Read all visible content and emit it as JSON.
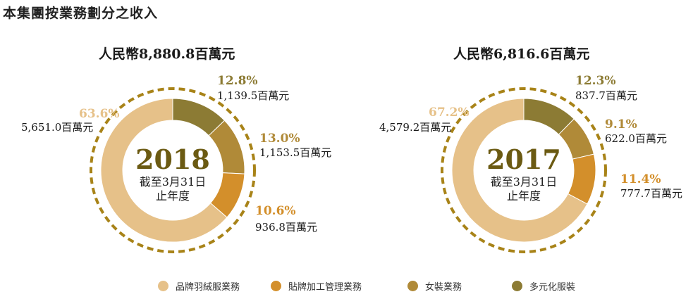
{
  "page_title": "本集團按業務劃分之收入",
  "chart_data": [
    {
      "type": "pie",
      "title": "人民幣8,880.8百萬元",
      "center_year": "2018",
      "center_line1": "截至3月31日",
      "center_line2": "止年度",
      "slices": [
        {
          "name": "品牌羽絨服業務",
          "percent": 63.6,
          "percent_label": "63.6%",
          "value_label": "5,651.0百萬元",
          "color": "#e6c189"
        },
        {
          "name": "貼牌加工管理業務",
          "percent": 10.6,
          "percent_label": "10.6%",
          "value_label": "936.8百萬元",
          "color": "#d38f2b"
        },
        {
          "name": "女裝業務",
          "percent": 13.0,
          "percent_label": "13.0%",
          "value_label": "1,153.5百萬元",
          "color": "#b08a38"
        },
        {
          "name": "多元化服裝",
          "percent": 12.8,
          "percent_label": "12.8%",
          "value_label": "1,139.5百萬元",
          "color": "#8c7b34"
        }
      ]
    },
    {
      "type": "pie",
      "title": "人民幣6,816.6百萬元",
      "center_year": "2017",
      "center_line1": "截至3月31日",
      "center_line2": "止年度",
      "slices": [
        {
          "name": "品牌羽絨服業務",
          "percent": 67.2,
          "percent_label": "67.2%",
          "value_label": "4,579.2百萬元",
          "color": "#e6c189"
        },
        {
          "name": "貼牌加工管理業務",
          "percent": 11.4,
          "percent_label": "11.4%",
          "value_label": "777.7百萬元",
          "color": "#d38f2b"
        },
        {
          "name": "女裝業務",
          "percent": 9.1,
          "percent_label": "9.1%",
          "value_label": "622.0百萬元",
          "color": "#b08a38"
        },
        {
          "name": "多元化服裝",
          "percent": 12.3,
          "percent_label": "12.3%",
          "value_label": "837.7百萬元",
          "color": "#8c7b34"
        }
      ]
    }
  ],
  "legend": [
    {
      "label": "品牌羽絨服業務",
      "color": "#e6c189"
    },
    {
      "label": "貼牌加工管理業務",
      "color": "#d38f2b"
    },
    {
      "label": "女裝業務",
      "color": "#b08a38"
    },
    {
      "label": "多元化服裝",
      "color": "#8c7b34"
    }
  ]
}
